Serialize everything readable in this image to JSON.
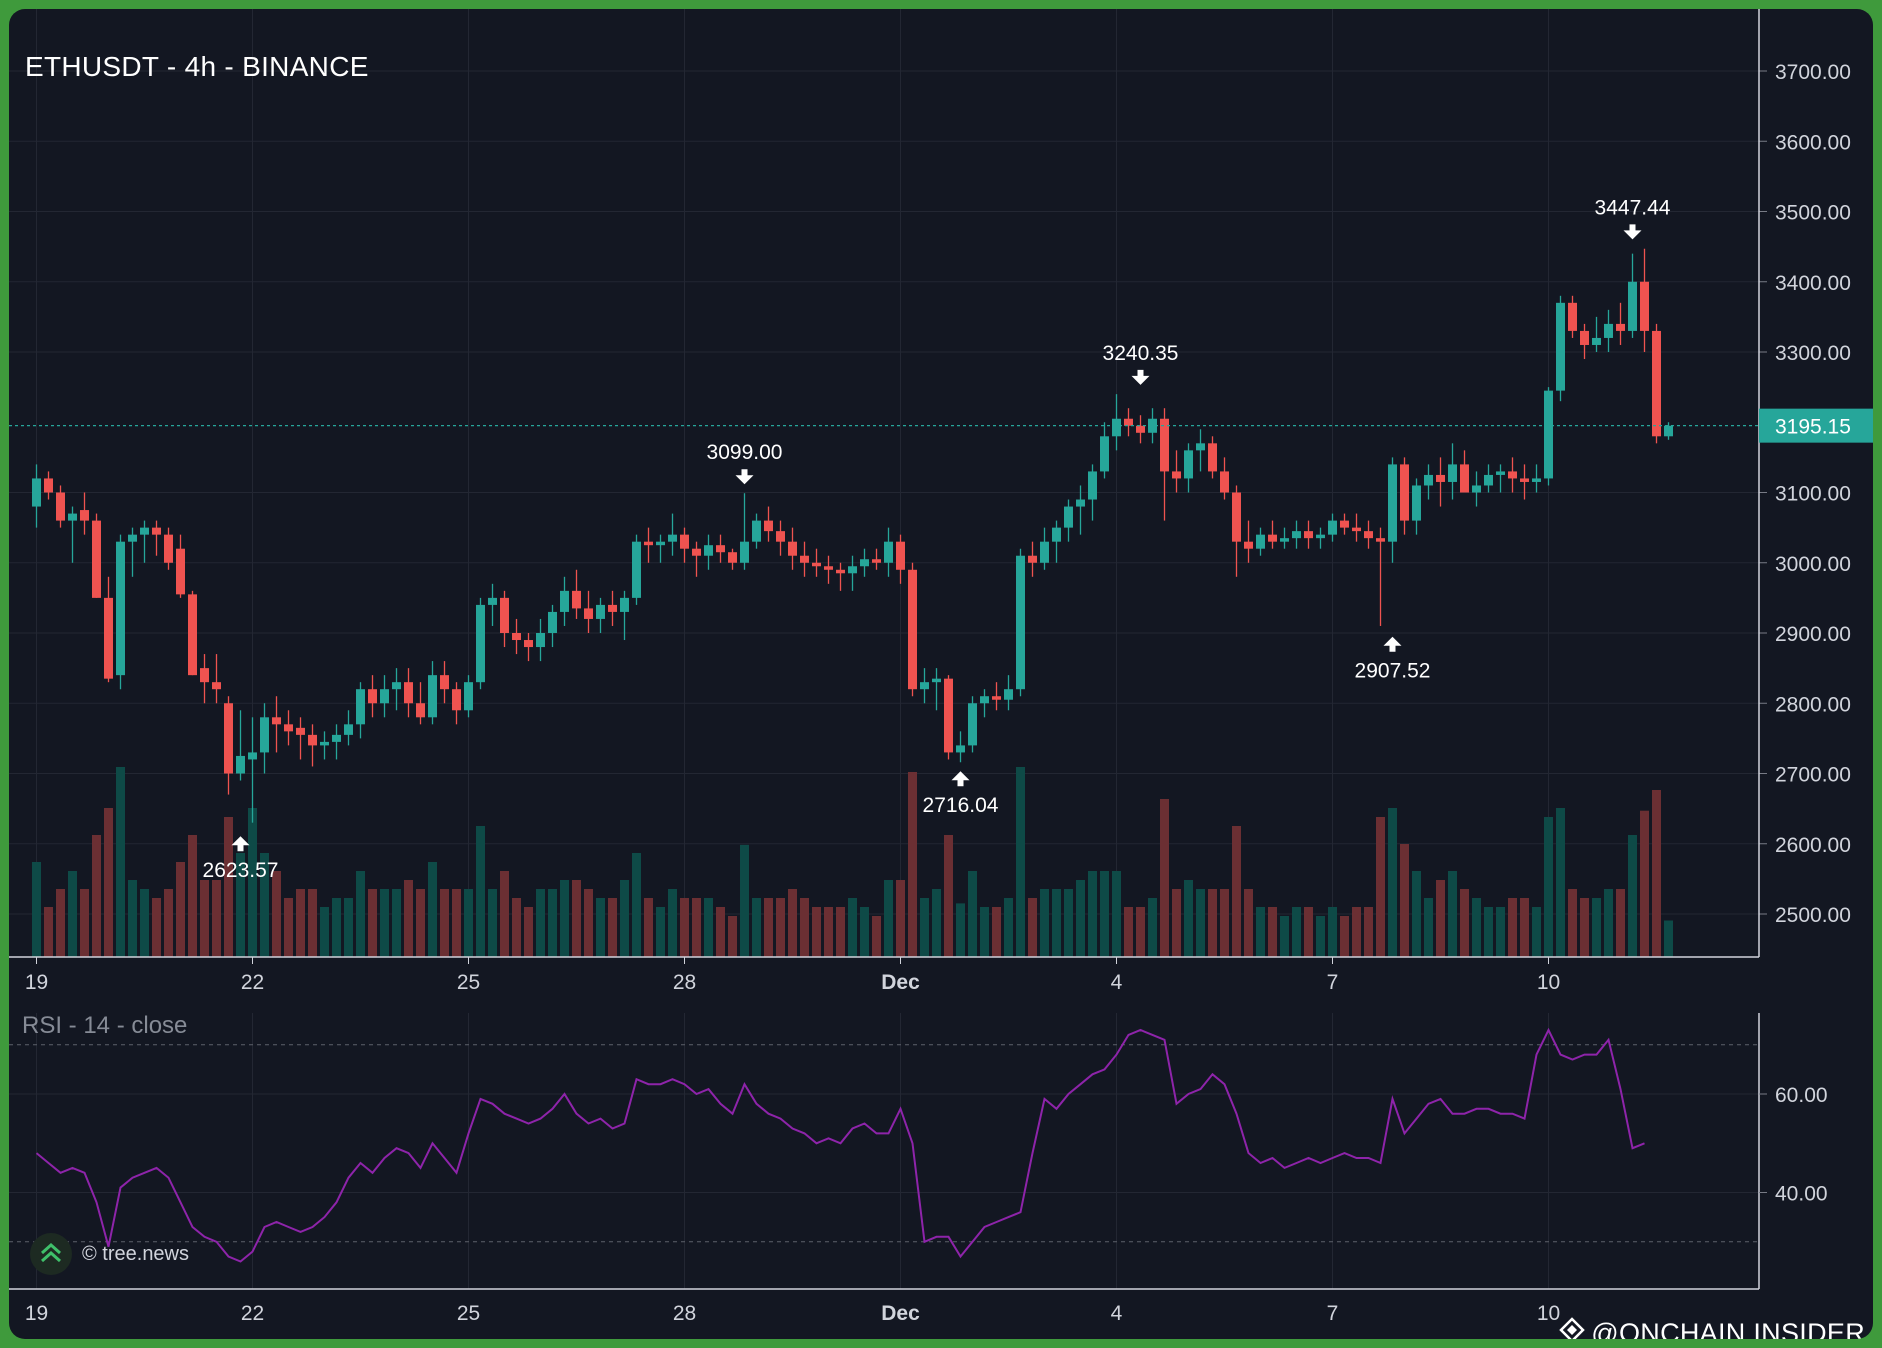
{
  "header": {
    "symbol_title": "ETHUSDT - 4h - BINANCE"
  },
  "rsi_panel": {
    "title": "RSI - 14 - close"
  },
  "watermark": {
    "text": "© tree.news"
  },
  "brand": {
    "text": "@ONCHAIN INSIDER"
  },
  "colors": {
    "background": "#131722",
    "frame": "#3f9a3c",
    "up": "#26a69a",
    "down": "#ef5350",
    "volume_up": "#0e4a47",
    "volume_down": "#6b2f33",
    "rsi_line": "#8e24aa",
    "price_label": "#26a69a",
    "grid": "#232733"
  },
  "chart_data": [
    {
      "type": "candlestick",
      "title": "ETHUSDT - 4h - BINANCE",
      "interval": "4h",
      "x_tick_labels": [
        "19",
        "22",
        "25",
        "28",
        "Dec",
        "4",
        "7",
        "10"
      ],
      "x_tick_bars": [
        0,
        18,
        36,
        54,
        72,
        90,
        108,
        126
      ],
      "y_tick_labels": [
        "3700.00",
        "3600.00",
        "3500.00",
        "3400.00",
        "3300.00",
        "3100.00",
        "3000.00",
        "2900.00",
        "2800.00",
        "2700.00",
        "2600.00",
        "2500.00"
      ],
      "ylim": [
        2425,
        3780
      ],
      "grid": true,
      "last_price": "3195.15",
      "annotations": [
        {
          "label": "2623.57",
          "bar": 17,
          "price": 2623.57,
          "kind": "low"
        },
        {
          "label": "3099.00",
          "bar": 59,
          "price": 3099.0,
          "kind": "high"
        },
        {
          "label": "2716.04",
          "bar": 77,
          "price": 2716.04,
          "kind": "low"
        },
        {
          "label": "3240.35",
          "bar": 92,
          "price": 3240.35,
          "kind": "high"
        },
        {
          "label": "2907.52",
          "bar": 113,
          "price": 2907.52,
          "kind": "low"
        },
        {
          "label": "3447.44",
          "bar": 133,
          "price": 3447.44,
          "kind": "high"
        }
      ],
      "ohlc": [
        [
          3080,
          3140,
          3050,
          3120
        ],
        [
          3120,
          3130,
          3090,
          3100
        ],
        [
          3100,
          3110,
          3050,
          3060
        ],
        [
          3060,
          3080,
          3000,
          3070
        ],
        [
          3075,
          3100,
          3040,
          3060
        ],
        [
          3060,
          3070,
          2950,
          2950
        ],
        [
          2950,
          2980,
          2830,
          2835
        ],
        [
          2840,
          3040,
          2820,
          3030
        ],
        [
          3030,
          3050,
          2980,
          3040
        ],
        [
          3040,
          3060,
          3000,
          3050
        ],
        [
          3050,
          3060,
          3010,
          3040
        ],
        [
          3040,
          3050,
          2990,
          3000
        ],
        [
          3020,
          3040,
          2950,
          2955
        ],
        [
          2955,
          2960,
          2840,
          2840
        ],
        [
          2850,
          2870,
          2800,
          2830
        ],
        [
          2830,
          2870,
          2800,
          2820
        ],
        [
          2800,
          2810,
          2670,
          2700
        ],
        [
          2700,
          2790,
          2690,
          2725
        ],
        [
          2720,
          2780,
          2630,
          2730
        ],
        [
          2730,
          2800,
          2700,
          2780
        ],
        [
          2780,
          2810,
          2730,
          2770
        ],
        [
          2770,
          2790,
          2740,
          2760
        ],
        [
          2765,
          2780,
          2720,
          2755
        ],
        [
          2755,
          2770,
          2710,
          2740
        ],
        [
          2740,
          2760,
          2720,
          2745
        ],
        [
          2745,
          2770,
          2720,
          2755
        ],
        [
          2755,
          2790,
          2740,
          2770
        ],
        [
          2770,
          2830,
          2750,
          2820
        ],
        [
          2820,
          2840,
          2780,
          2800
        ],
        [
          2800,
          2840,
          2780,
          2820
        ],
        [
          2820,
          2850,
          2790,
          2830
        ],
        [
          2830,
          2850,
          2780,
          2800
        ],
        [
          2800,
          2830,
          2770,
          2780
        ],
        [
          2780,
          2860,
          2770,
          2840
        ],
        [
          2840,
          2860,
          2800,
          2820
        ],
        [
          2820,
          2830,
          2770,
          2790
        ],
        [
          2790,
          2840,
          2780,
          2830
        ],
        [
          2830,
          2950,
          2820,
          2940
        ],
        [
          2940,
          2970,
          2910,
          2950
        ],
        [
          2950,
          2960,
          2880,
          2900
        ],
        [
          2900,
          2920,
          2870,
          2890
        ],
        [
          2890,
          2900,
          2860,
          2880
        ],
        [
          2880,
          2920,
          2860,
          2900
        ],
        [
          2900,
          2940,
          2880,
          2930
        ],
        [
          2930,
          2980,
          2910,
          2960
        ],
        [
          2960,
          2990,
          2920,
          2935
        ],
        [
          2935,
          2960,
          2900,
          2920
        ],
        [
          2920,
          2950,
          2900,
          2940
        ],
        [
          2940,
          2960,
          2910,
          2930
        ],
        [
          2930,
          2960,
          2890,
          2950
        ],
        [
          2950,
          3040,
          2940,
          3030
        ],
        [
          3030,
          3050,
          3000,
          3025
        ],
        [
          3025,
          3040,
          3000,
          3030
        ],
        [
          3030,
          3070,
          3010,
          3040
        ],
        [
          3040,
          3050,
          3000,
          3020
        ],
        [
          3020,
          3030,
          2980,
          3010
        ],
        [
          3010,
          3040,
          2990,
          3025
        ],
        [
          3025,
          3040,
          3000,
          3015
        ],
        [
          3015,
          3020,
          2990,
          3000
        ],
        [
          3000,
          3099,
          2990,
          3030
        ],
        [
          3030,
          3070,
          3020,
          3060
        ],
        [
          3060,
          3080,
          3030,
          3045
        ],
        [
          3045,
          3060,
          3010,
          3030
        ],
        [
          3030,
          3050,
          2990,
          3010
        ],
        [
          3010,
          3030,
          2980,
          3000
        ],
        [
          3000,
          3020,
          2980,
          2995
        ],
        [
          2995,
          3010,
          2970,
          2990
        ],
        [
          2990,
          3000,
          2960,
          2985
        ],
        [
          2985,
          3010,
          2960,
          2995
        ],
        [
          2995,
          3020,
          2980,
          3005
        ],
        [
          3005,
          3020,
          2990,
          3000
        ],
        [
          3000,
          3050,
          2980,
          3030
        ],
        [
          3030,
          3040,
          2970,
          2990
        ],
        [
          2990,
          3000,
          2810,
          2820
        ],
        [
          2820,
          2850,
          2800,
          2830
        ],
        [
          2830,
          2850,
          2790,
          2835
        ],
        [
          2835,
          2840,
          2720,
          2730
        ],
        [
          2730,
          2760,
          2716,
          2740
        ],
        [
          2740,
          2810,
          2730,
          2800
        ],
        [
          2800,
          2820,
          2780,
          2810
        ],
        [
          2810,
          2830,
          2790,
          2805
        ],
        [
          2805,
          2840,
          2790,
          2820
        ],
        [
          2820,
          3020,
          2810,
          3010
        ],
        [
          3010,
          3030,
          2980,
          3000
        ],
        [
          3000,
          3050,
          2990,
          3030
        ],
        [
          3030,
          3060,
          3000,
          3050
        ],
        [
          3050,
          3090,
          3030,
          3080
        ],
        [
          3080,
          3110,
          3040,
          3090
        ],
        [
          3090,
          3140,
          3060,
          3130
        ],
        [
          3130,
          3200,
          3120,
          3180
        ],
        [
          3180,
          3240,
          3160,
          3205
        ],
        [
          3205,
          3220,
          3180,
          3195
        ],
        [
          3195,
          3210,
          3170,
          3185
        ],
        [
          3185,
          3220,
          3170,
          3205
        ],
        [
          3205,
          3220,
          3060,
          3130
        ],
        [
          3130,
          3160,
          3100,
          3120
        ],
        [
          3120,
          3170,
          3100,
          3160
        ],
        [
          3160,
          3190,
          3130,
          3170
        ],
        [
          3170,
          3180,
          3120,
          3130
        ],
        [
          3130,
          3150,
          3090,
          3100
        ],
        [
          3100,
          3110,
          2980,
          3030
        ],
        [
          3030,
          3060,
          3000,
          3020
        ],
        [
          3020,
          3050,
          3010,
          3040
        ],
        [
          3040,
          3060,
          3020,
          3030
        ],
        [
          3030,
          3050,
          3020,
          3035
        ],
        [
          3035,
          3060,
          3020,
          3045
        ],
        [
          3045,
          3060,
          3020,
          3035
        ],
        [
          3035,
          3050,
          3020,
          3040
        ],
        [
          3040,
          3070,
          3030,
          3060
        ],
        [
          3060,
          3070,
          3040,
          3050
        ],
        [
          3050,
          3070,
          3030,
          3045
        ],
        [
          3045,
          3060,
          3020,
          3035
        ],
        [
          3035,
          3050,
          2910,
          3030
        ],
        [
          3030,
          3150,
          3000,
          3140
        ],
        [
          3140,
          3150,
          3040,
          3060
        ],
        [
          3060,
          3120,
          3040,
          3110
        ],
        [
          3110,
          3140,
          3090,
          3125
        ],
        [
          3125,
          3150,
          3080,
          3115
        ],
        [
          3115,
          3170,
          3090,
          3140
        ],
        [
          3140,
          3160,
          3100,
          3100
        ],
        [
          3100,
          3130,
          3080,
          3110
        ],
        [
          3110,
          3140,
          3100,
          3125
        ],
        [
          3125,
          3140,
          3100,
          3130
        ],
        [
          3130,
          3150,
          3100,
          3120
        ],
        [
          3120,
          3140,
          3090,
          3115
        ],
        [
          3115,
          3140,
          3100,
          3120
        ],
        [
          3120,
          3250,
          3110,
          3245
        ],
        [
          3245,
          3380,
          3230,
          3370
        ],
        [
          3370,
          3380,
          3320,
          3330
        ],
        [
          3330,
          3340,
          3290,
          3310
        ],
        [
          3310,
          3350,
          3300,
          3320
        ],
        [
          3320,
          3360,
          3300,
          3340
        ],
        [
          3340,
          3370,
          3310,
          3330
        ],
        [
          3330,
          3440,
          3320,
          3400
        ],
        [
          3400,
          3447,
          3300,
          3330
        ],
        [
          3330,
          3340,
          3170,
          3180
        ],
        [
          3180,
          3200,
          3175,
          3195
        ]
      ]
    },
    {
      "type": "line",
      "title": "RSI - 14 - close",
      "y_tick_labels": [
        "60.00",
        "40.00"
      ],
      "ylim": [
        22,
        80
      ],
      "reference_lines": [
        70,
        30
      ],
      "values": [
        48,
        46,
        44,
        45,
        44,
        38,
        29,
        41,
        43,
        44,
        45,
        43,
        38,
        33,
        31,
        30,
        27,
        26,
        28,
        33,
        34,
        33,
        32,
        33,
        35,
        38,
        43,
        46,
        44,
        47,
        49,
        48,
        45,
        50,
        47,
        44,
        52,
        59,
        58,
        56,
        55,
        54,
        55,
        57,
        60,
        56,
        54,
        55,
        53,
        54,
        63,
        62,
        62,
        63,
        62,
        60,
        61,
        58,
        56,
        62,
        58,
        56,
        55,
        53,
        52,
        50,
        51,
        50,
        53,
        54,
        52,
        52,
        57,
        50,
        30,
        31,
        31,
        27,
        30,
        33,
        34,
        35,
        36,
        48,
        59,
        57,
        60,
        62,
        64,
        65,
        68,
        72,
        73,
        72,
        71,
        58,
        60,
        61,
        64,
        62,
        56,
        48,
        46,
        47,
        45,
        46,
        47,
        46,
        47,
        48,
        47,
        47,
        46,
        59,
        52,
        55,
        58,
        59,
        56,
        56,
        57,
        57,
        56,
        56,
        55,
        68,
        73,
        68,
        67,
        68,
        68,
        71,
        61,
        49,
        50
      ]
    }
  ]
}
